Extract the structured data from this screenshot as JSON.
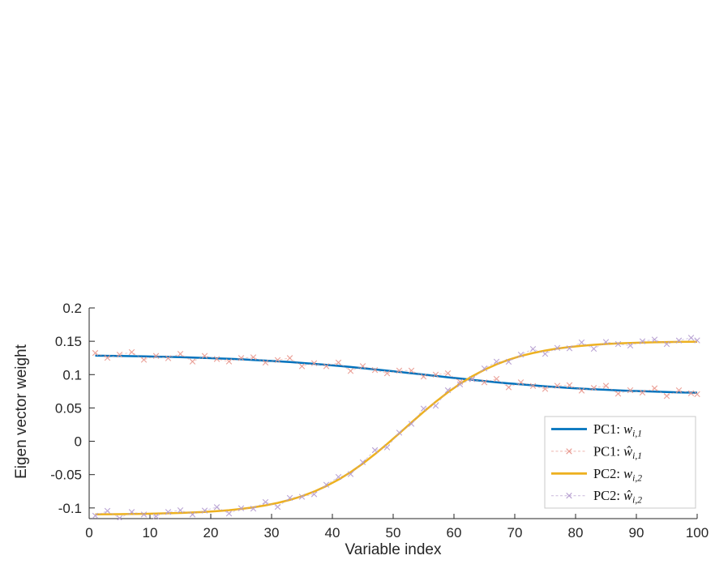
{
  "chart_data": {
    "type": "line",
    "title": "",
    "xlabel": "Variable index",
    "ylabel": "Eigen vector weight",
    "xlim": [
      0,
      100
    ],
    "ylim": [
      -0.116,
      0.2
    ],
    "xticks": [
      0,
      10,
      20,
      30,
      40,
      50,
      60,
      70,
      80,
      90,
      100
    ],
    "xtick_labels": [
      "0",
      "10",
      "20",
      "30",
      "40",
      "50",
      "60",
      "70",
      "80",
      "90",
      "100"
    ],
    "yticks": [
      -0.1,
      -0.05,
      0,
      0.05,
      0.1,
      0.15,
      0.2
    ],
    "ytick_labels": [
      "-0.1",
      "-0.05",
      "0",
      "0.05",
      "0.1",
      "0.15",
      "0.2"
    ],
    "grid": false,
    "box": false,
    "axis_color": "#262626",
    "legend_position": "inside-lower-right",
    "legend_border_color": "#c9c9c9",
    "x": [
      1,
      3,
      5,
      7,
      9,
      11,
      13,
      15,
      17,
      19,
      21,
      23,
      25,
      27,
      29,
      31,
      33,
      35,
      37,
      39,
      41,
      43,
      45,
      47,
      49,
      51,
      53,
      55,
      57,
      59,
      61,
      63,
      65,
      67,
      69,
      71,
      73,
      75,
      77,
      79,
      81,
      83,
      85,
      87,
      89,
      91,
      93,
      95,
      97,
      99,
      100
    ],
    "series": [
      {
        "name": "PC1: w_{i,1}",
        "label_prefix": "PC1: ",
        "label_var": "w",
        "label_sub": "i,1",
        "style": "solid",
        "marker": "none",
        "color": "#0072BD",
        "values": [
          0.1284,
          0.1282,
          0.1279,
          0.1277,
          0.1273,
          0.127,
          0.1266,
          0.1261,
          0.1256,
          0.125,
          0.1244,
          0.1237,
          0.1229,
          0.122,
          0.121,
          0.1199,
          0.1188,
          0.1175,
          0.1161,
          0.1146,
          0.1131,
          0.1114,
          0.1096,
          0.1078,
          0.1059,
          0.104,
          0.102,
          0.1,
          0.098,
          0.096,
          0.0941,
          0.0922,
          0.0904,
          0.0886,
          0.0869,
          0.0854,
          0.0839,
          0.0825,
          0.0813,
          0.0801,
          0.079,
          0.078,
          0.0772,
          0.0764,
          0.0756,
          0.075,
          0.0744,
          0.0739,
          0.0734,
          0.073,
          0.0729
        ]
      },
      {
        "name": "PC1: ŵ_{i,1}",
        "label_prefix": "PC1: ",
        "label_var": "ŵ",
        "label_sub": "i,1",
        "style": "dashed",
        "marker": "x",
        "color": "#e8968c",
        "values": [
          0.1324,
          0.1252,
          0.1299,
          0.1337,
          0.1223,
          0.128,
          0.1246,
          0.1311,
          0.1196,
          0.128,
          0.1234,
          0.1197,
          0.1249,
          0.126,
          0.118,
          0.1219,
          0.1248,
          0.1125,
          0.1171,
          0.1126,
          0.1181,
          0.1054,
          0.1127,
          0.1068,
          0.1019,
          0.106,
          0.106,
          0.097,
          0.1,
          0.102,
          0.0891,
          0.0932,
          0.0884,
          0.0936,
          0.0809,
          0.0884,
          0.0829,
          0.0785,
          0.0833,
          0.0841,
          0.076,
          0.08,
          0.0832,
          0.0714,
          0.0766,
          0.073,
          0.0794,
          0.0679,
          0.0764,
          0.072,
          0.0706
        ]
      },
      {
        "name": "PC2: w_{i,2}",
        "label_prefix": "PC2: ",
        "label_var": "w",
        "label_sub": "i,2",
        "style": "solid",
        "marker": "none",
        "color": "#EDB120",
        "values": [
          -0.1096,
          -0.1094,
          -0.1093,
          -0.1091,
          -0.1088,
          -0.1085,
          -0.108,
          -0.1075,
          -0.1068,
          -0.1059,
          -0.1047,
          -0.1033,
          -0.1014,
          -0.0991,
          -0.0961,
          -0.0924,
          -0.0879,
          -0.0823,
          -0.0754,
          -0.0672,
          -0.0575,
          -0.0463,
          -0.0335,
          -0.0193,
          -0.0041,
          0.0119,
          0.0281,
          0.0441,
          0.0593,
          0.0735,
          0.0863,
          0.0975,
          0.1072,
          0.1154,
          0.1223,
          0.1279,
          0.1324,
          0.1361,
          0.1391,
          0.1414,
          0.1433,
          0.1447,
          0.1459,
          0.1468,
          0.1475,
          0.148,
          0.1485,
          0.1488,
          0.1491,
          0.1493,
          0.1493
        ]
      },
      {
        "name": "PC2: ŵ_{i,2}",
        "label_prefix": "PC2: ",
        "label_var": "ŵ",
        "label_sub": "i,2",
        "style": "dashed",
        "marker": "x",
        "color": "#b39ace",
        "values": [
          -0.1116,
          -0.1044,
          -0.1153,
          -0.1061,
          -0.1098,
          -0.1125,
          -0.106,
          -0.1035,
          -0.1098,
          -0.1039,
          -0.0987,
          -0.1083,
          -0.1004,
          -0.1011,
          -0.0911,
          -0.0984,
          -0.0849,
          -0.0833,
          -0.0794,
          -0.0652,
          -0.0535,
          -0.0493,
          -0.0315,
          -0.0133,
          -0.0091,
          0.0129,
          0.0261,
          0.0491,
          0.0533,
          0.0765,
          0.0853,
          0.0935,
          0.1092,
          0.1194,
          0.1193,
          0.1299,
          0.1384,
          0.1311,
          0.1401,
          0.1394,
          0.1483,
          0.1387,
          0.1489,
          0.1458,
          0.1435,
          0.15,
          0.1525,
          0.1458,
          0.1511,
          0.1553,
          0.1513
        ]
      }
    ]
  }
}
